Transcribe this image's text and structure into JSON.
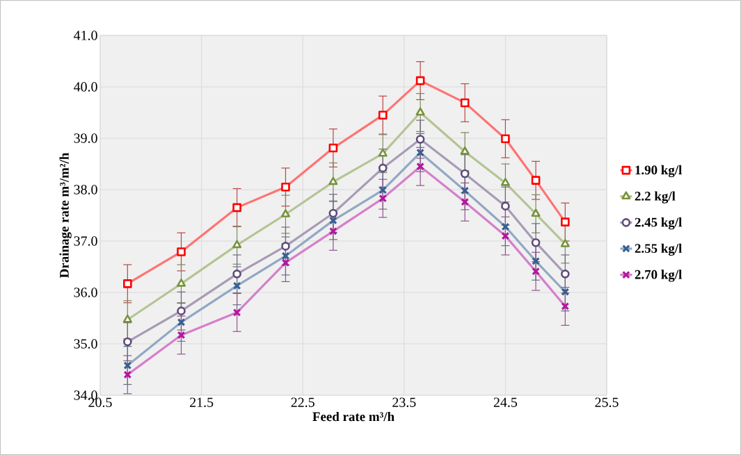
{
  "chart_data": {
    "type": "line",
    "xlabel": "Feed rate m³/h",
    "ylabel": "Drainage  rate m³/m²/h",
    "x": [
      20.77,
      21.3,
      21.85,
      22.33,
      22.8,
      23.29,
      23.66,
      24.1,
      24.5,
      24.8,
      25.09
    ],
    "series": [
      {
        "name": "1.90 kg/l",
        "color": "#ff0000",
        "marker": "square",
        "values": [
          36.17,
          36.79,
          37.65,
          38.05,
          38.81,
          39.45,
          40.12,
          39.69,
          38.99,
          38.18,
          37.37
        ],
        "errors": [
          0.37,
          0.37,
          0.37,
          0.37,
          0.37,
          0.37,
          0.37,
          0.37,
          0.37,
          0.37,
          0.37
        ]
      },
      {
        "name": "2.2 kg/l",
        "color": "#77933c",
        "marker": "triangle",
        "values": [
          35.47,
          36.17,
          36.92,
          37.52,
          38.15,
          38.7,
          39.5,
          38.74,
          38.13,
          37.53,
          36.94
        ],
        "errors": [
          0.37,
          0.37,
          0.37,
          0.37,
          0.37,
          0.37,
          0.37,
          0.37,
          0.37,
          0.37,
          0.37
        ]
      },
      {
        "name": "2.45 kg/l",
        "color": "#604a7b",
        "marker": "circle",
        "values": [
          35.04,
          35.64,
          36.36,
          36.9,
          37.54,
          38.42,
          38.98,
          38.31,
          37.68,
          36.97,
          36.36
        ],
        "errors": [
          0.37,
          0.37,
          0.37,
          0.37,
          0.37,
          0.37,
          0.37,
          0.37,
          0.37,
          0.37,
          0.37
        ]
      },
      {
        "name": "2.55 kg/l",
        "color": "#376092",
        "marker": "cross",
        "values": [
          34.58,
          35.42,
          36.13,
          36.71,
          37.4,
          37.99,
          38.72,
          37.98,
          37.28,
          36.61,
          36.01
        ],
        "errors": [
          0.37,
          0.37,
          0.37,
          0.37,
          0.37,
          0.37,
          0.37,
          0.37,
          0.37,
          0.37,
          0.37
        ]
      },
      {
        "name": "2.70 kg/l",
        "color": "#b3179f",
        "marker": "cross",
        "values": [
          34.4,
          35.17,
          35.61,
          36.58,
          37.19,
          37.83,
          38.45,
          37.76,
          37.1,
          36.41,
          35.73
        ],
        "errors": [
          0.37,
          0.37,
          0.37,
          0.37,
          0.37,
          0.37,
          0.37,
          0.37,
          0.37,
          0.37,
          0.37
        ]
      }
    ],
    "xlim": [
      20.5,
      25.5
    ],
    "xticks": [
      20.5,
      21.5,
      22.5,
      23.5,
      24.5,
      25.5
    ],
    "ylim": [
      34,
      41
    ],
    "yticks": [
      {
        "value": 34,
        "label": "34.0"
      },
      {
        "value": 35,
        "label": "35.0"
      },
      {
        "value": 36,
        "label": "36.0"
      },
      {
        "value": 37,
        "label": "37.0"
      },
      {
        "value": 38,
        "label": "38.0"
      },
      {
        "value": 39,
        "label": "39.0"
      },
      {
        "value": 40,
        "label": "40.0"
      },
      {
        "value": 41,
        "label": "41.0"
      }
    ],
    "grid": true,
    "legend": "right"
  }
}
